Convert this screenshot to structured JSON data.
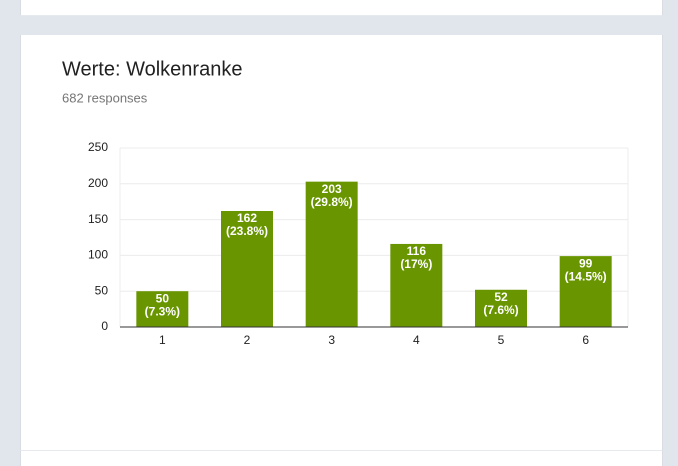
{
  "chart_data": {
    "type": "bar",
    "title": "Werte: Wolkenranke",
    "subtitle": "682 responses",
    "categories": [
      "1",
      "2",
      "3",
      "4",
      "5",
      "6"
    ],
    "values": [
      50,
      162,
      203,
      116,
      52,
      99
    ],
    "percent_labels": [
      "(7.3%)",
      "(23.8%)",
      "(29.8%)",
      "(17%)",
      "(7.6%)",
      "(14.5%)"
    ],
    "color": "#689500",
    "ylim": [
      0,
      250
    ],
    "yticks": [
      0,
      50,
      100,
      150,
      200,
      250
    ],
    "grid": true
  }
}
